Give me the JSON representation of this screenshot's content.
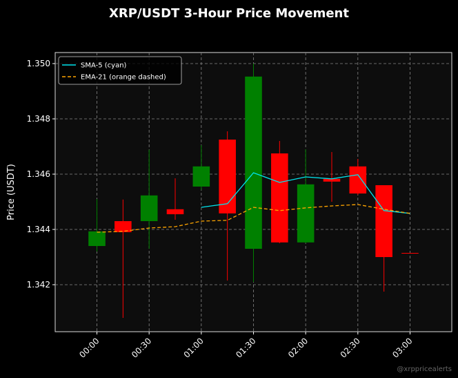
{
  "chart_data": {
    "type": "candlestick",
    "title": "XRP/USDT 3-Hour Price Movement",
    "y_label": "Price (USDT)",
    "watermark": "@xrppricealerts",
    "categories": [
      "00:00",
      null,
      "00:30",
      null,
      "01:00",
      null,
      "01:30",
      null,
      "02:00",
      null,
      "02:30",
      null,
      "03:00"
    ],
    "open": [
      1.3434,
      1.3443,
      1.3443,
      1.34473,
      1.34555,
      1.34725,
      1.3433,
      1.34675,
      1.34353,
      1.34583,
      1.34628,
      1.3456,
      1.34315
    ],
    "high": [
      1.3451,
      1.34508,
      1.34688,
      1.34585,
      1.34705,
      1.34755,
      1.35,
      1.3472,
      1.3469,
      1.3468,
      1.34655,
      1.3456,
      1.34315
    ],
    "low": [
      1.3432,
      1.3408,
      1.3433,
      1.34435,
      1.34543,
      1.34215,
      1.3421,
      1.3435,
      1.3435,
      1.345,
      1.34525,
      1.34175,
      1.34313
    ],
    "close": [
      1.34393,
      1.3439,
      1.34523,
      1.34455,
      1.34628,
      1.34458,
      1.34953,
      1.34353,
      1.34563,
      1.34573,
      1.3453,
      1.343,
      1.34313
    ],
    "up_color": "#008000",
    "down_color": "#ff0000",
    "series": [
      {
        "name": "SMA-5 (cyan)",
        "color": "#00e5ee",
        "dashed": false,
        "values": [
          null,
          null,
          null,
          null,
          1.3448,
          1.34493,
          1.34605,
          1.3457,
          1.3459,
          1.34583,
          1.34598,
          1.34468,
          1.34458
        ]
      },
      {
        "name": "EMA-21 (orange dashed)",
        "color": "#ffa500",
        "dashed": true,
        "values": [
          1.3439,
          1.34393,
          1.34405,
          1.3441,
          1.3443,
          1.34433,
          1.3448,
          1.34468,
          1.34478,
          1.34485,
          1.3449,
          1.34473,
          1.34458
        ]
      }
    ],
    "ylim": [
      1.3403,
      1.3504
    ],
    "yticks": [
      1.342,
      1.344,
      1.346,
      1.348,
      {
        "value": 1.35,
        "label": "1.350"
      }
    ],
    "grid": true,
    "legend": "upper left"
  }
}
